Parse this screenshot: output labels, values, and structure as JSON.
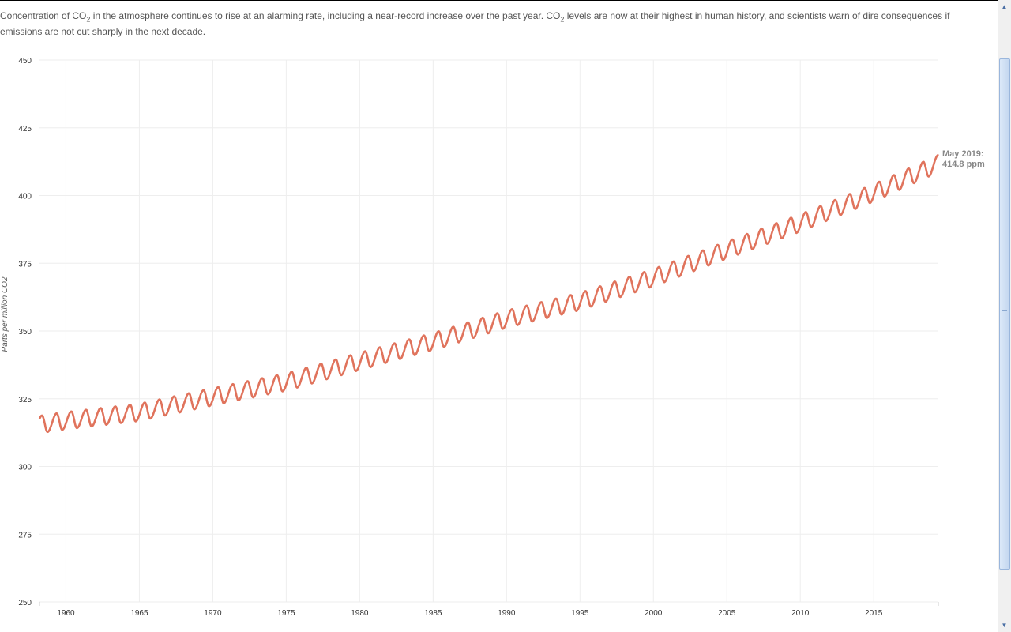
{
  "intro": {
    "part1": "Concentration of CO",
    "sub1": "2",
    "part2": " in the atmosphere continues to rise at an alarming rate, including a near-record increase over the past year. CO",
    "sub2": "2",
    "part3": " levels are now at their highest in human history, and scientists warn of dire consequences if emissions are not cut sharply in the next decade."
  },
  "chart_data": {
    "type": "line",
    "title": "",
    "xlabel": "",
    "ylabel": "Parts per million CO2",
    "xlim": [
      1958.2,
      2019.4
    ],
    "ylim": [
      250,
      450
    ],
    "y_ticks": [
      "250",
      "275",
      "300",
      "325",
      "350",
      "375",
      "400",
      "425",
      "450"
    ],
    "x_ticks": [
      "1960",
      "1965",
      "1970",
      "1975",
      "1980",
      "1985",
      "1990",
      "1995",
      "2000",
      "2005",
      "2010",
      "2015"
    ],
    "grid": true,
    "series": [
      {
        "color": "#e0735c",
        "annual_mean": {
          "years": [
            1958.2,
            1960,
            1965,
            1970,
            1975,
            1980,
            1985,
            1990,
            1995,
            2000,
            2005,
            2010,
            2015,
            2019.4
          ],
          "values": [
            315.5,
            316.9,
            320.0,
            325.7,
            331.2,
            338.8,
            346.1,
            354.4,
            360.9,
            369.7,
            379.9,
            389.9,
            401.0,
            411.8
          ]
        },
        "seasonal_amplitude_ppm": 3.2,
        "annual_peak": "May"
      }
    ],
    "annotation": {
      "line1": "May 2019:",
      "line2": "414.8 ppm",
      "x": 2019.37,
      "y": 414.8
    }
  },
  "scrollbar": {
    "up_icon": "up-arrow-icon",
    "down_icon": "down-arrow-icon"
  }
}
